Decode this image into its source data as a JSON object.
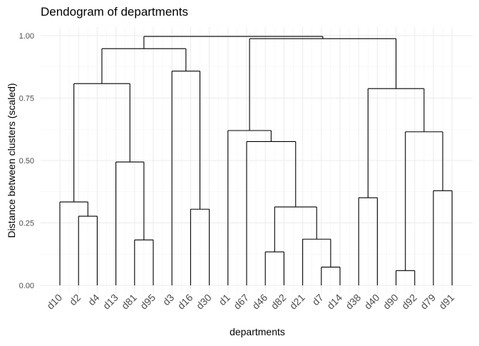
{
  "chart_data": {
    "type": "dendrogram",
    "title": "Dendogram of departments",
    "xlabel": "departments",
    "ylabel": "Distance between clusters (scaled)",
    "ylim": [
      0,
      1.05
    ],
    "y_ticks": [
      "0.00",
      "0.25",
      "0.50",
      "0.75",
      "1.00"
    ],
    "leaves": [
      "d10",
      "d2",
      "d4",
      "d13",
      "d81",
      "d95",
      "d3",
      "d16",
      "d30",
      "d1",
      "d67",
      "d46",
      "d82",
      "d21",
      "d7",
      "d14",
      "d38",
      "d40",
      "d90",
      "d92",
      "d79",
      "d91"
    ],
    "merges": [
      {
        "left": [
          2
        ],
        "right": [
          3
        ],
        "height": 0.277
      },
      {
        "left": [
          1
        ],
        "right": [
          2,
          3
        ],
        "height": 0.334
      },
      {
        "left": [
          5
        ],
        "right": [
          6
        ],
        "height": 0.182
      },
      {
        "left": [
          4
        ],
        "right": [
          5,
          6
        ],
        "height": 0.494
      },
      {
        "left": [
          1,
          2,
          3
        ],
        "right": [
          4,
          5,
          6
        ],
        "height": 0.808
      },
      {
        "left": [
          8
        ],
        "right": [
          9
        ],
        "height": 0.305
      },
      {
        "left": [
          7
        ],
        "right": [
          8,
          9
        ],
        "height": 0.858
      },
      {
        "left": [
          1,
          2,
          3,
          4,
          5,
          6
        ],
        "right": [
          7,
          8,
          9
        ],
        "height": 0.948
      },
      {
        "left": [
          12
        ],
        "right": [
          13
        ],
        "height": 0.134
      },
      {
        "left": [
          15
        ],
        "right": [
          16
        ],
        "height": 0.073
      },
      {
        "left": [
          14
        ],
        "right": [
          15,
          16
        ],
        "height": 0.185
      },
      {
        "left": [
          12,
          13
        ],
        "right": [
          14,
          15,
          16
        ],
        "height": 0.314
      },
      {
        "left": [
          11
        ],
        "right": [
          12,
          13,
          14,
          15,
          16
        ],
        "height": 0.576
      },
      {
        "left": [
          10
        ],
        "right": [
          11,
          12,
          13,
          14,
          15,
          16
        ],
        "height": 0.62
      },
      {
        "left": [
          17
        ],
        "right": [
          18
        ],
        "height": 0.351
      },
      {
        "left": [
          19
        ],
        "right": [
          20
        ],
        "height": 0.059
      },
      {
        "left": [
          21
        ],
        "right": [
          22
        ],
        "height": 0.379
      },
      {
        "left": [
          19,
          20
        ],
        "right": [
          21,
          22
        ],
        "height": 0.615
      },
      {
        "left": [
          17,
          18
        ],
        "right": [
          19,
          20,
          21,
          22
        ],
        "height": 0.788
      },
      {
        "left": [
          10,
          11,
          12,
          13,
          14,
          15,
          16
        ],
        "right": [
          17,
          18,
          19,
          20,
          21,
          22
        ],
        "height": 0.988
      },
      {
        "left": [
          1,
          2,
          3,
          4,
          5,
          6,
          7,
          8,
          9
        ],
        "right": [
          10,
          11,
          12,
          13,
          14,
          15,
          16,
          17,
          18,
          19,
          20,
          21,
          22
        ],
        "height": 0.997
      }
    ],
    "grid": true
  }
}
